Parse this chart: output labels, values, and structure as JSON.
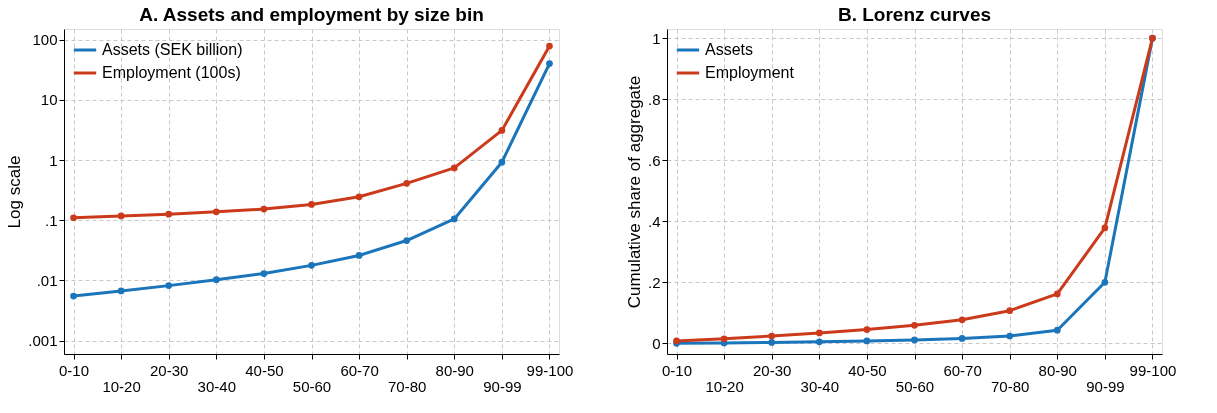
{
  "chart_data": [
    {
      "type": "line",
      "title": "A. Assets and employment by size bin",
      "ylabel": "Log scale",
      "log": true,
      "grid": true,
      "legend": "top left",
      "marker": "circle",
      "categories": [
        "0-10",
        "10-20",
        "20-30",
        "30-40",
        "40-50",
        "50-60",
        "60-70",
        "70-80",
        "80-90",
        "90-99",
        "99-100"
      ],
      "ylim": [
        0.0006,
        150
      ],
      "yticks": [
        {
          "value": 0.001,
          "label": ".001"
        },
        {
          "value": 0.01,
          "label": ".01"
        },
        {
          "value": 0.1,
          "label": ".1"
        },
        1,
        10,
        100
      ],
      "series": [
        {
          "name": "Assets (SEK billion)",
          "color": "#1a75bb",
          "values": [
            0.0055,
            0.0067,
            0.0082,
            0.0103,
            0.013,
            0.0178,
            0.026,
            0.046,
            0.105,
            0.92,
            40
          ]
        },
        {
          "name": "Employment (100s)",
          "color": "#cc3a1c",
          "values": [
            0.11,
            0.118,
            0.126,
            0.138,
            0.153,
            0.183,
            0.245,
            0.41,
            0.74,
            3.1,
            78
          ]
        }
      ]
    },
    {
      "type": "line",
      "title": "B. Lorenz curves",
      "ylabel": "Cumulative share of aggregate",
      "grid": true,
      "legend": "top left",
      "marker": "circle",
      "categories": [
        "0-10",
        "10-20",
        "20-30",
        "30-40",
        "40-50",
        "50-60",
        "60-70",
        "70-80",
        "80-90",
        "90-99",
        "99-100"
      ],
      "ylim": [
        -0.035,
        1.03
      ],
      "yticks": [
        0,
        {
          "value": 0.2,
          "label": ".2"
        },
        {
          "value": 0.4,
          "label": ".4"
        },
        {
          "value": 0.6,
          "label": ".6"
        },
        {
          "value": 0.8,
          "label": ".8"
        },
        1
      ],
      "series": [
        {
          "name": "Assets",
          "color": "#1a75bb",
          "values": [
            0,
            0.001,
            0.003,
            0.005,
            0.008,
            0.011,
            0.016,
            0.024,
            0.043,
            0.2,
            1
          ]
        },
        {
          "name": "Employment",
          "color": "#cc3a1c",
          "values": [
            0.008,
            0.015,
            0.024,
            0.034,
            0.045,
            0.059,
            0.077,
            0.107,
            0.162,
            0.378,
            1
          ]
        }
      ]
    }
  ]
}
